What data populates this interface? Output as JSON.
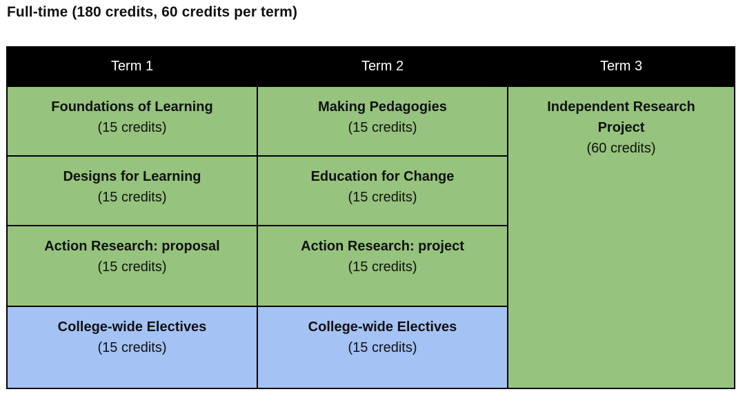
{
  "title": "Full-time (180 credits, 60 credits per term)",
  "headers": [
    "Term 1",
    "Term 2",
    "Term 3"
  ],
  "term1": [
    {
      "name": "Foundations of Learning",
      "credits": "(15 credits)"
    },
    {
      "name": "Designs for Learning",
      "credits": "(15 credits)"
    },
    {
      "name": "Action Research: proposal",
      "credits": "(15 credits)"
    },
    {
      "name": "College-wide Electives",
      "credits": "(15 credits)"
    }
  ],
  "term2": [
    {
      "name": "Making Pedagogies",
      "credits": "(15 credits)"
    },
    {
      "name": "Education for Change",
      "credits": "(15 credits)"
    },
    {
      "name": "Action Research: project",
      "credits": "(15 credits)"
    },
    {
      "name": "College-wide Electives",
      "credits": "(15 credits)"
    }
  ],
  "term3": {
    "name": "Independent Research Project",
    "credits": "(60 credits)"
  },
  "colors": {
    "core": "#96c37d",
    "elective": "#a4c2f4",
    "header": "#000000"
  }
}
